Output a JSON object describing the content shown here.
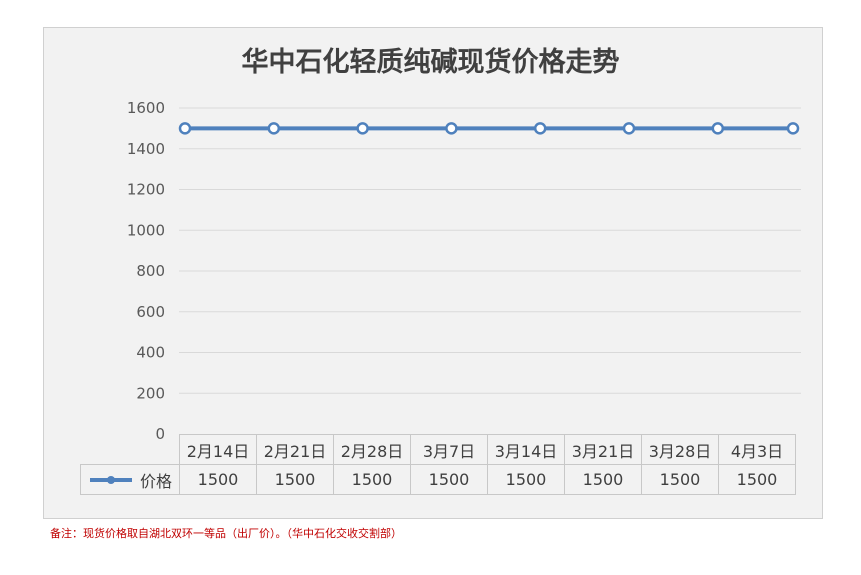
{
  "chart_data": {
    "type": "line",
    "title": "华中石化轻质纯碱现货价格走势",
    "categories": [
      "2月14日",
      "2月21日",
      "2月28日",
      "3月7日",
      "3月14日",
      "3月21日",
      "3月28日",
      "4月3日"
    ],
    "series": [
      {
        "name": "价格",
        "values": [
          1500,
          1500,
          1500,
          1500,
          1500,
          1500,
          1500,
          1500
        ],
        "color": "#4f81bd"
      }
    ],
    "value_labels": [
      "1500",
      "1500",
      "1500",
      "1500",
      "1500",
      "1500",
      "1500",
      "1500"
    ],
    "y_ticks": [
      "0",
      "200",
      "400",
      "600",
      "800",
      "1000",
      "1200",
      "1400",
      "1600"
    ],
    "ylim": [
      0,
      1600
    ],
    "grid": true,
    "legend": "data-table"
  },
  "footnote": "备注：现货价格取自湖北双环一等品（出厂价）。（华中石化交收交割部）"
}
